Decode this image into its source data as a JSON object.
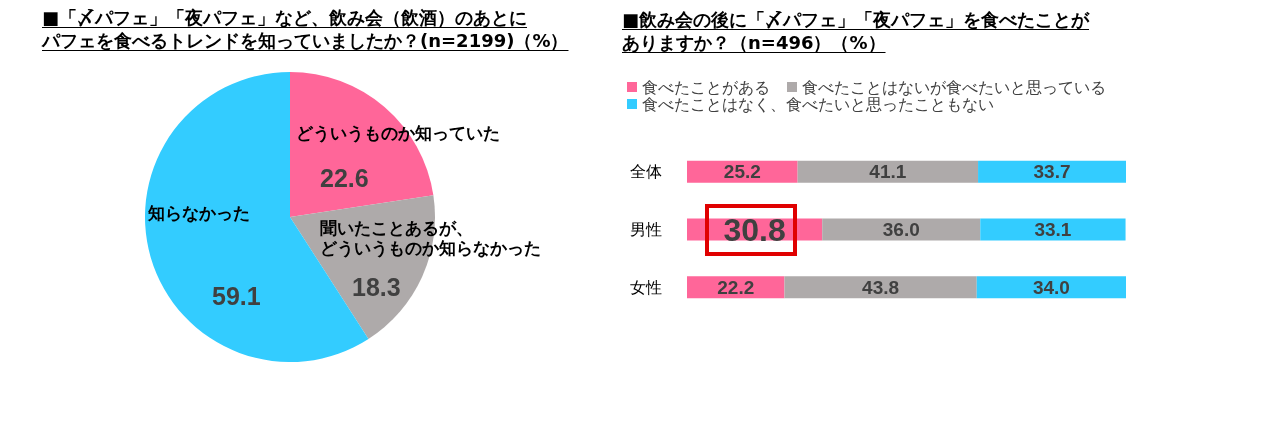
{
  "chart_data": [
    {
      "type": "pie",
      "title": "■「〆パフェ」「夜パフェ」など、飲み会（飲酒）のあとにパフェを食べるトレンドを知っていましたか？(n=2199)（%）",
      "categories": [
        "どういうものか知っていた",
        "聞いたことあるが、どういうものか知らなかった",
        "知らなかった"
      ],
      "values": [
        22.6,
        18.3,
        59.1
      ],
      "colors": [
        "#ff6699",
        "#aeaaaa",
        "#33ccff"
      ],
      "data_labels": true
    },
    {
      "type": "bar",
      "orientation": "horizontal",
      "stacked": true,
      "title": "■飲み会の後に「〆パフェ」「夜パフェ」を食べたことがありますか？（n=496）（%）",
      "categories": [
        "全体",
        "男性",
        "女性"
      ],
      "series": [
        {
          "name": "食べたことがある",
          "color": "#ff6699",
          "values": [
            25.2,
            30.8,
            22.2
          ],
          "value_labels": [
            "25.2",
            "30.8",
            "22.2"
          ]
        },
        {
          "name": "食べたことはないが食べたいと思っている",
          "color": "#aeaaaa",
          "values": [
            41.1,
            36.0,
            43.8
          ],
          "value_labels": [
            "41.1",
            "36.0",
            "43.8"
          ]
        },
        {
          "name": "食べたことはなく、食べたいと思ったこともない",
          "color": "#33ccff",
          "values": [
            33.7,
            33.1,
            34.0
          ],
          "value_labels": [
            "33.7",
            "33.1",
            "34.0"
          ]
        }
      ],
      "xlim": [
        0,
        100
      ],
      "legend": "top left",
      "tick_labels": "y"
    }
  ]
}
